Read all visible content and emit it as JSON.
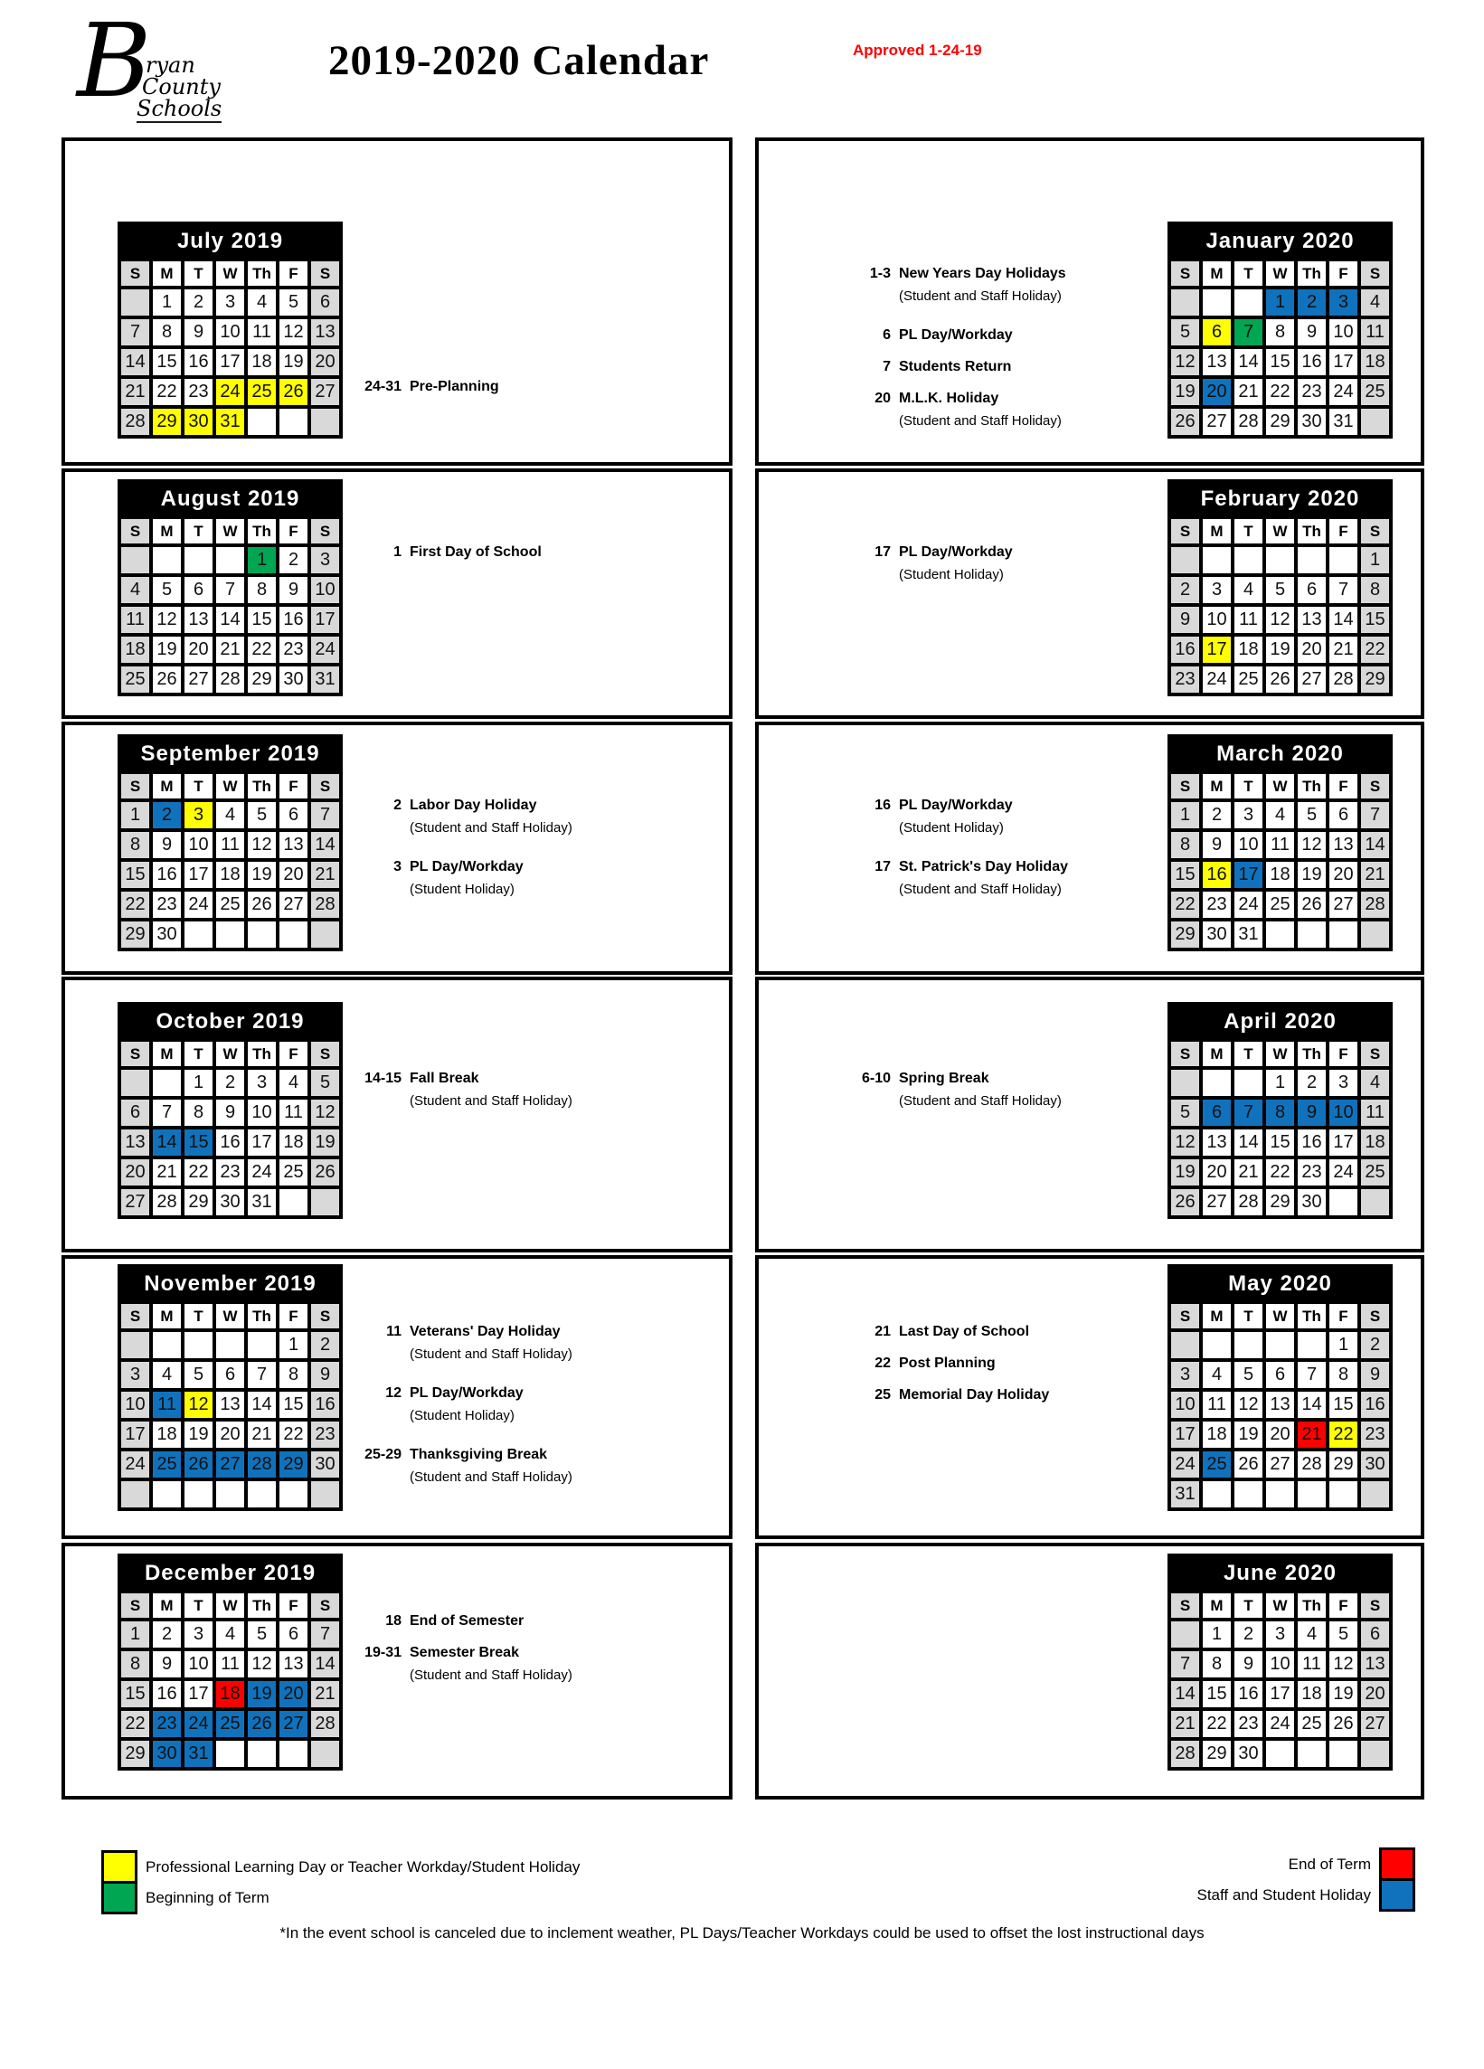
{
  "header": {
    "logo": {
      "letter": "B",
      "words": [
        "ryan",
        "County",
        "Schools"
      ]
    },
    "title": "2019-2020 Calendar",
    "approved": "Approved 1-24-19"
  },
  "day_headers": [
    "S",
    "M",
    "T",
    "W",
    "Th",
    "F",
    "S"
  ],
  "colors": {
    "yellow": "#FFFF00",
    "green": "#00A651",
    "blue": "#1072BC",
    "red": "#FF0000",
    "weekend_gray": "#D9D9D9",
    "header_bar": "#000000"
  },
  "months": [
    {
      "key": "july",
      "name": "July 2019",
      "side": "left",
      "row": 1,
      "first": 1,
      "days": 31,
      "hl": {
        "24": "yellow",
        "25": "yellow",
        "26": "yellow",
        "29": "yellow",
        "30": "yellow",
        "31": "yellow"
      },
      "notes": [
        {
          "num": "24-31",
          "label": "Pre-Planning"
        }
      ]
    },
    {
      "key": "august",
      "name": "August 2019",
      "side": "left",
      "row": 2,
      "first": 4,
      "days": 31,
      "hl": {
        "1": "green"
      },
      "notes": [
        {
          "num": "1",
          "label": "First Day of School"
        }
      ]
    },
    {
      "key": "september",
      "name": "September 2019",
      "side": "left",
      "row": 3,
      "first": 0,
      "days": 30,
      "hl": {
        "2": "blue",
        "3": "yellow"
      },
      "notes": [
        {
          "num": "2",
          "label": "Labor Day Holiday"
        },
        {
          "sub": "(Student and Staff Holiday)"
        },
        {
          "num": "3",
          "label": "PL Day/Workday"
        },
        {
          "sub": "(Student Holiday)"
        }
      ]
    },
    {
      "key": "october",
      "name": "October 2019",
      "side": "left",
      "row": 4,
      "first": 2,
      "days": 31,
      "hl": {
        "14": "blue",
        "15": "blue"
      },
      "notes": [
        {
          "num": "14-15",
          "label": "Fall Break"
        },
        {
          "sub": "(Student and Staff Holiday)"
        }
      ]
    },
    {
      "key": "november",
      "name": "November 2019",
      "side": "left",
      "row": 5,
      "first": 5,
      "days": 30,
      "rows": 6,
      "hl": {
        "11": "blue",
        "12": "yellow",
        "25": "blue",
        "26": "blue",
        "27": "blue",
        "28": "blue",
        "29": "blue"
      },
      "notes": [
        {
          "num": "11",
          "label": "Veterans' Day Holiday"
        },
        {
          "sub": "(Student and Staff Holiday)"
        },
        {
          "num": "12",
          "label": "PL Day/Workday"
        },
        {
          "sub": "(Student Holiday)"
        },
        {
          "num": "25-29",
          "label": "Thanksgiving Break"
        },
        {
          "sub": "(Student and Staff Holiday)"
        }
      ]
    },
    {
      "key": "december",
      "name": "December 2019",
      "side": "left",
      "row": 6,
      "first": 0,
      "days": 31,
      "hl": {
        "18": "red",
        "19": "blue",
        "20": "blue",
        "23": "blue",
        "24": "blue",
        "25": "blue",
        "26": "blue",
        "27": "blue",
        "30": "blue",
        "31": "blue"
      },
      "notes": [
        {
          "num": "18",
          "label": "End of Semester"
        },
        {
          "num": "19-31",
          "label": "Semester Break"
        },
        {
          "sub": "(Student and Staff Holiday)"
        }
      ]
    },
    {
      "key": "january",
      "name": "January 2020",
      "side": "right",
      "row": 1,
      "first": 3,
      "days": 31,
      "hl": {
        "1": "blue",
        "2": "blue",
        "3": "blue",
        "6": "yellow",
        "7": "green",
        "20": "blue"
      },
      "notes": [
        {
          "num": "1-3",
          "label": "New Years Day Holidays"
        },
        {
          "sub": "(Student and Staff Holiday)"
        },
        {
          "num": "6",
          "label": "PL Day/Workday"
        },
        {
          "num": "7",
          "label": "Students Return"
        },
        {
          "num": "20",
          "label": "M.L.K. Holiday"
        },
        {
          "sub": "(Student and Staff Holiday)"
        }
      ]
    },
    {
      "key": "february",
      "name": "February 2020",
      "side": "right",
      "row": 2,
      "first": 6,
      "days": 29,
      "hl": {
        "17": "yellow"
      },
      "notes": [
        {
          "num": "17",
          "label": "PL Day/Workday"
        },
        {
          "sub": "(Student Holiday)"
        }
      ]
    },
    {
      "key": "march",
      "name": "March 2020",
      "side": "right",
      "row": 3,
      "first": 0,
      "days": 31,
      "hl": {
        "16": "yellow",
        "17": "blue"
      },
      "notes": [
        {
          "num": "16",
          "label": "PL Day/Workday"
        },
        {
          "sub": "(Student Holiday)"
        },
        {
          "num": "17",
          "label": "St. Patrick's Day Holiday"
        },
        {
          "sub": "(Student and Staff Holiday)"
        }
      ]
    },
    {
      "key": "april",
      "name": "April 2020",
      "side": "right",
      "row": 4,
      "first": 3,
      "days": 30,
      "hl": {
        "6": "blue",
        "7": "blue",
        "8": "blue",
        "9": "blue",
        "10": "blue"
      },
      "notes": [
        {
          "num": "6-10",
          "label": "Spring Break"
        },
        {
          "sub": "(Student and Staff Holiday)"
        }
      ]
    },
    {
      "key": "may",
      "name": "May 2020",
      "side": "right",
      "row": 5,
      "first": 5,
      "days": 31,
      "hl": {
        "21": "red",
        "22": "yellow",
        "25": "blue"
      },
      "notes": [
        {
          "num": "21",
          "label": "Last Day of School"
        },
        {
          "num": "22",
          "label": "Post Planning"
        },
        {
          "num": "25",
          "label": "Memorial Day Holiday"
        }
      ]
    },
    {
      "key": "june",
      "name": "June 2020",
      "side": "right",
      "row": 6,
      "first": 1,
      "days": 30,
      "hl": {},
      "notes": []
    }
  ],
  "legend": {
    "left": [
      {
        "color": "yellow",
        "label": "Professional Learning Day or Teacher Workday/Student Holiday"
      },
      {
        "color": "green",
        "label": "Beginning of Term"
      }
    ],
    "right": [
      {
        "color": "red",
        "label": "End of Term"
      },
      {
        "color": "blue",
        "label": "Staff and Student Holiday"
      }
    ]
  },
  "footnote": "*In the event school is canceled due to inclement weather, PL Days/Teacher Workdays could be used to offset the lost instructional days"
}
